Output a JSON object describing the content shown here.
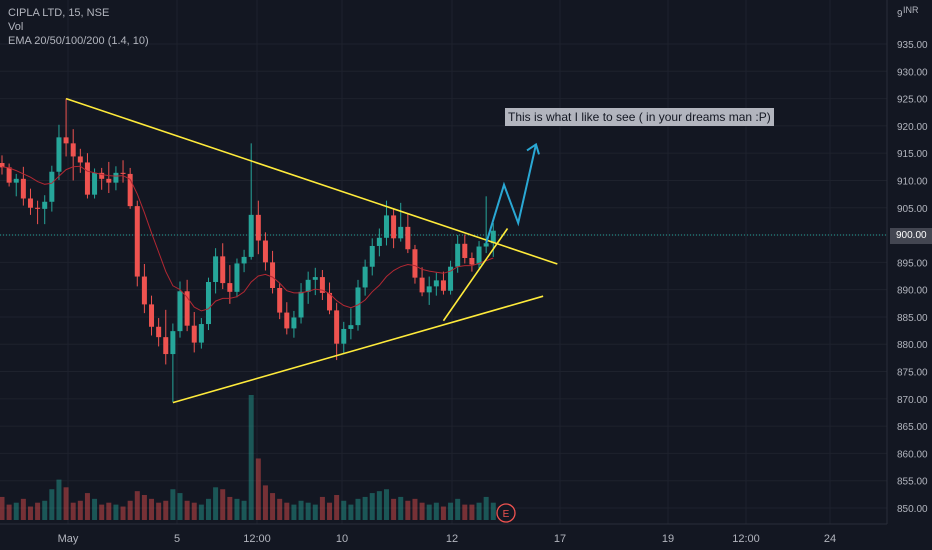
{
  "legend": {
    "symbol": "CIPLA LTD, 15, NSE",
    "volume": "Vol",
    "ema": "EMA 20/50/100/200 (1.4, 10)"
  },
  "annotation_text": "This is what I like to see ( in your dreams man :P)",
  "price_axis": {
    "currency": "INR",
    "top_partial_label": "9",
    "labels": [
      "935.00",
      "930.00",
      "925.00",
      "920.00",
      "915.00",
      "910.00",
      "905.00",
      "900.00",
      "895.00",
      "890.00",
      "885.00",
      "880.00",
      "875.00",
      "870.00",
      "865.00",
      "860.00",
      "855.00",
      "850.00"
    ],
    "current_price": "900.00"
  },
  "time_axis": {
    "labels": [
      "May",
      "5",
      "12:00",
      "10",
      "12",
      "17",
      "19",
      "12:00",
      "24"
    ]
  },
  "event_marker": "E",
  "colors": {
    "background": "#131722",
    "up": "#26a69a",
    "down": "#ef5350",
    "ema": "#b22833",
    "trendline": "#ffeb3b",
    "projection": "#2aa8d4",
    "text": "#b2b5be"
  },
  "chart_data": {
    "type": "candlestick",
    "interval": "15",
    "y_unit": "INR",
    "ylim": [
      848,
      938
    ],
    "grid": true,
    "trendlines": [
      {
        "name": "descending resistance",
        "from": {
          "bar": 9,
          "price": 925
        },
        "to": {
          "bar": 78,
          "price": 894.7
        }
      },
      {
        "name": "ascending support",
        "from": {
          "bar": 24,
          "price": 869.3
        },
        "to": {
          "bar": 76,
          "price": 888.8
        }
      },
      {
        "name": "short-term support",
        "from": {
          "bar": 62,
          "price": 884.3
        },
        "to": {
          "bar": 71,
          "price": 901.2
        }
      }
    ],
    "projection_path": [
      {
        "bar": 68,
        "price": 898.5
      },
      {
        "bar": 70.5,
        "price": 909.2
      },
      {
        "bar": 72.5,
        "price": 902.2
      },
      {
        "bar": 75,
        "price": 916.6
      }
    ],
    "annotation": "This is what I like to see ( in your dreams man :P)",
    "candles": [
      [
        913.2,
        914.6,
        911.1,
        912.4
      ],
      [
        912.4,
        913.1,
        908.9,
        909.6
      ],
      [
        909.6,
        911.2,
        907.1,
        910.3
      ],
      [
        910.3,
        912.5,
        905.4,
        906.7
      ],
      [
        906.7,
        908.5,
        903.7,
        905.0
      ],
      [
        905.0,
        906.3,
        902.0,
        904.8
      ],
      [
        904.8,
        907.3,
        902.0,
        906.1
      ],
      [
        906.1,
        912.7,
        904.3,
        911.6
      ],
      [
        911.6,
        920.2,
        910.1,
        917.9
      ],
      [
        917.9,
        925.0,
        914.4,
        916.8
      ],
      [
        916.8,
        919.4,
        910.0,
        914.4
      ],
      [
        914.4,
        915.8,
        911.4,
        913.3
      ],
      [
        913.3,
        915.0,
        906.7,
        907.4
      ],
      [
        907.4,
        912.2,
        906.7,
        911.4
      ],
      [
        911.4,
        912.3,
        908.3,
        910.3
      ],
      [
        910.3,
        913.4,
        907.7,
        909.6
      ],
      [
        909.6,
        912.6,
        908.2,
        911.4
      ],
      [
        911.4,
        913.7,
        909.6,
        911.2
      ],
      [
        911.2,
        912.3,
        904.8,
        905.3
      ],
      [
        905.3,
        906.3,
        890.6,
        892.4
      ],
      [
        892.4,
        894.7,
        885.7,
        887.3
      ],
      [
        887.3,
        888.9,
        881.6,
        883.2
      ],
      [
        883.2,
        884.8,
        879.6,
        881.3
      ],
      [
        881.3,
        886.3,
        876.3,
        878.2
      ],
      [
        878.2,
        883.8,
        869.4,
        882.4
      ],
      [
        882.4,
        891.5,
        881.2,
        889.7
      ],
      [
        889.7,
        891.8,
        882.4,
        883.4
      ],
      [
        883.4,
        885.9,
        878.5,
        880.3
      ],
      [
        880.3,
        884.8,
        879.2,
        883.7
      ],
      [
        883.7,
        892.2,
        882.6,
        891.4
      ],
      [
        891.4,
        897.6,
        889.3,
        896.1
      ],
      [
        896.1,
        898.5,
        890.1,
        891.2
      ],
      [
        891.2,
        894.5,
        887.4,
        889.6
      ],
      [
        889.6,
        895.7,
        888.6,
        894.8
      ],
      [
        894.8,
        897.3,
        893.2,
        896.0
      ],
      [
        896.0,
        916.8,
        895.5,
        903.7
      ],
      [
        903.7,
        906.3,
        896.5,
        899.0
      ],
      [
        899.0,
        900.5,
        893.5,
        895.0
      ],
      [
        895.0,
        897.1,
        889.3,
        890.3
      ],
      [
        890.3,
        891.2,
        884.6,
        885.8
      ],
      [
        885.8,
        887.7,
        881.8,
        882.9
      ],
      [
        882.9,
        886.1,
        881.2,
        884.9
      ],
      [
        884.9,
        891.2,
        883.8,
        889.6
      ],
      [
        889.6,
        893.3,
        887.4,
        891.8
      ],
      [
        891.8,
        894.0,
        889.0,
        892.3
      ],
      [
        892.3,
        893.6,
        888.1,
        889.4
      ],
      [
        889.4,
        891.3,
        885.5,
        886.2
      ],
      [
        886.2,
        887.6,
        877.1,
        880.1
      ],
      [
        880.1,
        884.1,
        878.4,
        882.8
      ],
      [
        882.8,
        886.6,
        880.9,
        883.5
      ],
      [
        883.5,
        891.8,
        882.5,
        890.4
      ],
      [
        890.4,
        895.5,
        888.9,
        894.2
      ],
      [
        894.2,
        899.4,
        892.6,
        898.0
      ],
      [
        898.0,
        901.2,
        896.1,
        899.5
      ],
      [
        899.5,
        906.3,
        898.1,
        903.6
      ],
      [
        903.6,
        904.8,
        897.6,
        899.4
      ],
      [
        899.4,
        905.9,
        898.8,
        901.5
      ],
      [
        901.5,
        904.0,
        896.7,
        897.4
      ],
      [
        897.4,
        898.2,
        891.1,
        892.2
      ],
      [
        892.2,
        894.1,
        888.8,
        889.5
      ],
      [
        889.5,
        892.4,
        887.2,
        890.6
      ],
      [
        890.6,
        893.1,
        888.9,
        891.7
      ],
      [
        891.7,
        893.3,
        889.1,
        889.8
      ],
      [
        889.8,
        895.3,
        889.1,
        894.2
      ],
      [
        894.2,
        900.0,
        893.1,
        898.4
      ],
      [
        898.4,
        900.1,
        894.8,
        895.8
      ],
      [
        895.8,
        896.8,
        893.3,
        894.6
      ],
      [
        894.6,
        898.9,
        893.9,
        897.9
      ],
      [
        897.9,
        907.1,
        896.7,
        898.5
      ],
      [
        898.5,
        902.2,
        896.0,
        900.8
      ]
    ],
    "ema": [
      912.5,
      912.3,
      911.8,
      911.2,
      910.6,
      909.8,
      909.3,
      909.5,
      910.8,
      912.0,
      912.5,
      912.6,
      911.7,
      911.4,
      911.1,
      910.9,
      910.8,
      910.9,
      910.2,
      907.5,
      904.1,
      900.4,
      896.9,
      893.3,
      890.7,
      890.0,
      888.6,
      886.8,
      886.1,
      886.5,
      887.9,
      888.4,
      888.4,
      888.7,
      889.6,
      891.4,
      892.5,
      892.8,
      892.3,
      891.2,
      889.8,
      889.4,
      889.4,
      889.7,
      890.1,
      889.9,
      889.3,
      888.0,
      887.1,
      886.7,
      887.2,
      888.1,
      889.6,
      890.8,
      892.4,
      893.5,
      894.2,
      894.6,
      894.4,
      893.7,
      893.4,
      893.2,
      893.0,
      893.4,
      894.2,
      894.4,
      894.4,
      894.8,
      895.3,
      895.8
    ],
    "volume": [
      1.2,
      0.8,
      0.9,
      1.1,
      0.7,
      0.9,
      1.0,
      1.6,
      2.1,
      1.7,
      0.9,
      1.0,
      1.4,
      1.1,
      0.8,
      0.9,
      0.8,
      0.7,
      1.0,
      1.5,
      1.3,
      1.1,
      0.9,
      1.0,
      1.6,
      1.4,
      1.0,
      0.9,
      0.8,
      1.1,
      1.7,
      1.6,
      1.2,
      1.1,
      1.0,
      6.5,
      3.2,
      1.8,
      1.4,
      1.1,
      0.9,
      0.8,
      1.0,
      0.9,
      0.8,
      1.2,
      0.9,
      1.3,
      1.0,
      0.8,
      1.1,
      1.2,
      1.4,
      1.5,
      1.6,
      1.1,
      1.2,
      1.0,
      1.1,
      0.9,
      0.8,
      0.9,
      0.7,
      0.9,
      1.1,
      0.8,
      0.8,
      0.9,
      1.2,
      0.9
    ]
  }
}
